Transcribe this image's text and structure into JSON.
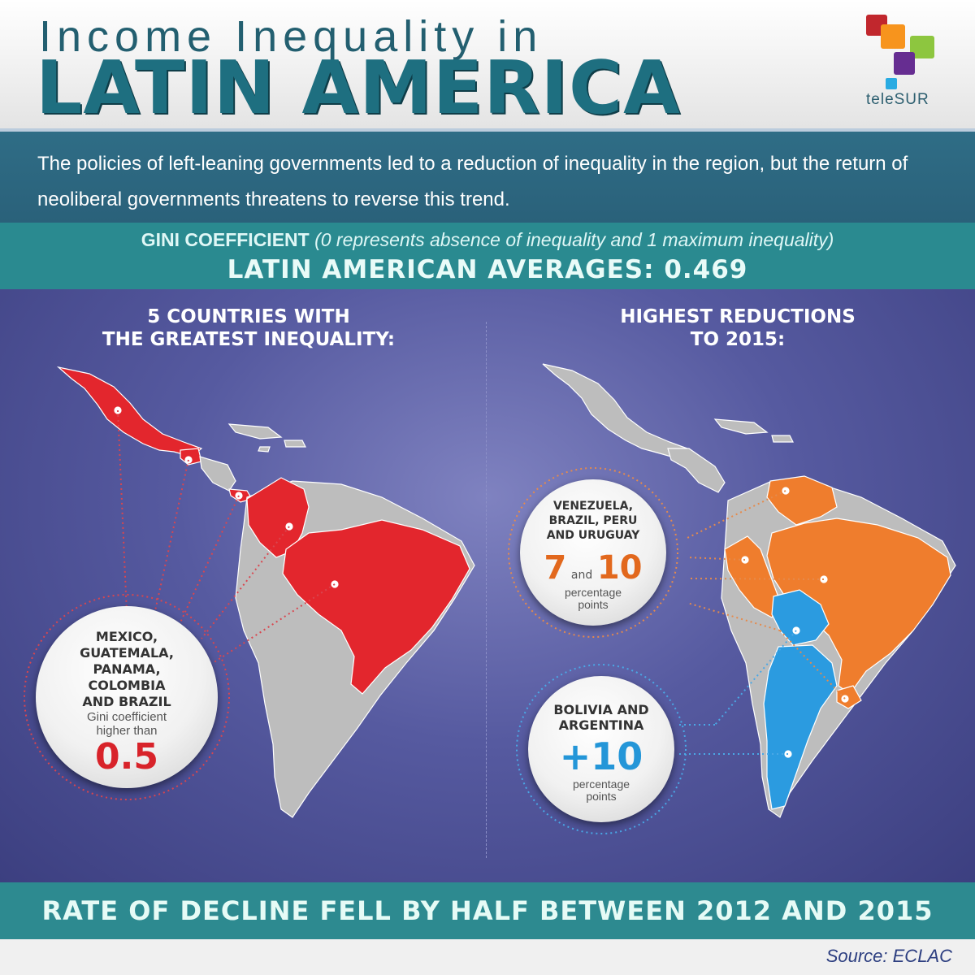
{
  "header": {
    "title_line1": "Income Inequality in",
    "title_line2": "LATIN AMERICA",
    "logo_text": "teleSUR",
    "logo_colors": [
      "#c1272d",
      "#f7941d",
      "#8dc63f",
      "#662d91",
      "#29abe2"
    ]
  },
  "subtitle": "The policies of left-leaning governments led to a reduction of inequality in the region, but the return of neoliberal governments threatens to reverse this trend.",
  "gini": {
    "label": "GINI COEFFICIENT",
    "note": "(0 represents absence of inequality and 1 maximum inequality)",
    "averages": "LATIN AMERICAN AVERAGES: 0.469"
  },
  "left_panel": {
    "title_line1": "5 COUNTRIES WITH",
    "title_line2": "THE GREATEST INEQUALITY:",
    "bubble_countries": [
      "MEXICO,",
      "GUATEMALA,",
      "PANAMA,",
      "COLOMBIA",
      "AND BRAZIL"
    ],
    "bubble_desc_line1": "Gini coefficient",
    "bubble_desc_line2": "higher than",
    "bubble_value": "0.5",
    "highlight_color": "#e3262d"
  },
  "right_panel": {
    "title_line1": "HIGHEST REDUCTIONS",
    "title_line2": "TO 2015:",
    "top_bubble": {
      "countries": [
        "VENEZUELA,",
        "BRAZIL, PERU",
        "AND URUGUAY"
      ],
      "value_a": "7",
      "joiner": "and",
      "value_b": "10",
      "desc_line1": "percentage",
      "desc_line2": "points",
      "color": "#ef7d2d"
    },
    "bottom_bubble": {
      "countries": [
        "BOLIVIA AND",
        "ARGENTINA"
      ],
      "value": "+10",
      "desc_line1": "percentage",
      "desc_line2": "points",
      "color": "#2b9be0"
    }
  },
  "footer": {
    "headline": "RATE OF DECLINE FELL BY HALF BETWEEN 2012 AND 2015",
    "source": "Source: ECLAC"
  }
}
